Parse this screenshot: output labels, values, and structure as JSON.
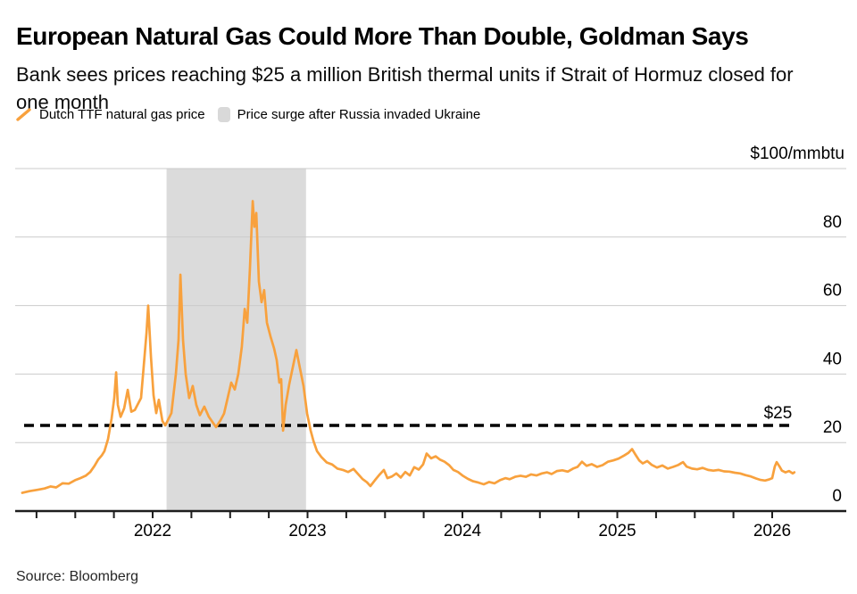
{
  "header": {
    "title": "European Natural Gas Could More Than Double, Goldman Says",
    "subtitle": "Bank sees prices reaching $25 a million British thermal units if Strait of Hormuz closed for one month"
  },
  "legend": {
    "items": [
      {
        "label": "Dutch TTF natural gas price",
        "swatch": "line",
        "color": "#f8a13d"
      },
      {
        "label": "Price surge after Russia invaded Ukraine",
        "swatch": "band",
        "color": "#d9d9d9"
      }
    ]
  },
  "footer": {
    "source_label": "Source: Bloomberg"
  },
  "chart_data": {
    "type": "line",
    "title": "European Natural Gas Could More Than Double, Goldman Says",
    "unit_label": "$100/mmbtu",
    "xlabel": "",
    "ylabel": "",
    "ylim": [
      0,
      100
    ],
    "yticks": [
      0,
      20,
      40,
      60,
      80
    ],
    "xticks_major": [
      2022,
      2023,
      2024,
      2025,
      2026
    ],
    "xticks_minor": {
      "start": 2021.25,
      "end": 2026.0,
      "step": 0.25
    },
    "grid": true,
    "legend_position": "top",
    "axis_label_side": "right",
    "reference_line": {
      "value": 25,
      "label": "$25",
      "style": "dashed",
      "color": "#000000",
      "x_start": 2021.17,
      "x_end": 2026.14
    },
    "shaded_region": {
      "label": "Price surge after Russia invaded Ukraine",
      "x0": 2022.09,
      "x1": 2022.99,
      "color": "#dbdbdb"
    },
    "series": [
      {
        "name": "Dutch TTF natural gas price",
        "color": "#f8a13d",
        "x": [
          2021.158,
          2021.204,
          2021.256,
          2021.302,
          2021.342,
          2021.377,
          2021.418,
          2021.458,
          2021.499,
          2021.533,
          2021.568,
          2021.597,
          2021.625,
          2021.648,
          2021.671,
          2021.689,
          2021.712,
          2021.735,
          2021.752,
          2021.764,
          2021.775,
          2021.793,
          2021.816,
          2021.839,
          2021.862,
          2021.885,
          2021.908,
          2021.925,
          2021.942,
          2021.96,
          2021.971,
          2021.989,
          2022.006,
          2022.023,
          2022.04,
          2022.063,
          2022.081,
          2022.098,
          2022.121,
          2022.15,
          2022.167,
          2022.179,
          2022.196,
          2022.213,
          2022.236,
          2022.259,
          2022.282,
          2022.305,
          2022.334,
          2022.363,
          2022.386,
          2022.409,
          2022.438,
          2022.461,
          2022.484,
          2022.507,
          2022.53,
          2022.553,
          2022.576,
          2022.594,
          2022.611,
          2022.628,
          2022.646,
          2022.657,
          2022.669,
          2022.686,
          2022.703,
          2022.72,
          2022.738,
          2022.761,
          2022.784,
          2022.801,
          2022.818,
          2022.83,
          2022.842,
          2022.859,
          2022.882,
          2022.905,
          2022.928,
          2022.945,
          2022.974,
          2022.997,
          2023.02,
          2023.038,
          2023.061,
          2023.089,
          2023.124,
          2023.159,
          2023.193,
          2023.228,
          2023.262,
          2023.297,
          2023.326,
          2023.354,
          2023.383,
          2023.406,
          2023.435,
          2023.464,
          2023.493,
          2023.516,
          2023.545,
          2023.573,
          2023.602,
          2023.631,
          2023.66,
          2023.689,
          2023.718,
          2023.746,
          2023.769,
          2023.798,
          2023.827,
          2023.856,
          2023.885,
          2023.914,
          2023.942,
          2023.971,
          2024.0,
          2024.035,
          2024.069,
          2024.104,
          2024.138,
          2024.173,
          2024.207,
          2024.242,
          2024.277,
          2024.305,
          2024.34,
          2024.375,
          2024.409,
          2024.444,
          2024.478,
          2024.513,
          2024.547,
          2024.576,
          2024.611,
          2024.645,
          2024.68,
          2024.714,
          2024.743,
          2024.772,
          2024.801,
          2024.835,
          2024.87,
          2024.905,
          2024.939,
          2024.974,
          2025.008,
          2025.043,
          2025.072,
          2025.095,
          2025.118,
          2025.141,
          2025.164,
          2025.193,
          2025.222,
          2025.256,
          2025.291,
          2025.326,
          2025.36,
          2025.395,
          2025.424,
          2025.447,
          2025.482,
          2025.516,
          2025.551,
          2025.586,
          2025.62,
          2025.655,
          2025.689,
          2025.724,
          2025.758,
          2025.793,
          2025.827,
          2025.862,
          2025.896,
          2025.925,
          2025.954,
          2025.977,
          2026.0,
          2026.017,
          2026.029,
          2026.046,
          2026.063,
          2026.086,
          2026.109,
          2026.132,
          2026.143
        ],
        "y": [
          5.3,
          5.8,
          6.2,
          6.6,
          7.2,
          6.9,
          8.1,
          8.0,
          9.0,
          9.6,
          10.3,
          11.4,
          13.2,
          15.0,
          16.2,
          17.5,
          21.0,
          27.0,
          33.0,
          40.5,
          31.0,
          27.5,
          30.0,
          35.4,
          29.0,
          29.5,
          31.5,
          33.0,
          42.0,
          52.0,
          60.0,
          45.0,
          33.8,
          28.6,
          32.5,
          26.3,
          25.0,
          26.5,
          28.6,
          40.0,
          50.0,
          69.0,
          50.0,
          40.0,
          33.0,
          36.5,
          31.0,
          28.0,
          30.5,
          27.5,
          26.0,
          24.5,
          26.5,
          28.5,
          33.0,
          37.5,
          35.5,
          40.0,
          48.0,
          59.0,
          55.0,
          71.0,
          90.5,
          83.0,
          87.0,
          67.0,
          61.0,
          64.5,
          55.0,
          51.0,
          47.5,
          44.0,
          37.5,
          38.5,
          23.5,
          31.0,
          37.0,
          42.0,
          47.0,
          43.0,
          36.5,
          28.5,
          23.5,
          20.5,
          17.5,
          15.8,
          14.2,
          13.6,
          12.4,
          12.0,
          11.4,
          12.3,
          10.8,
          9.4,
          8.4,
          7.3,
          9.0,
          10.6,
          12.0,
          9.6,
          10.1,
          11.0,
          9.8,
          11.4,
          10.4,
          12.8,
          12.1,
          13.6,
          16.8,
          15.4,
          16.0,
          15.0,
          14.4,
          13.4,
          12.0,
          11.4,
          10.4,
          9.4,
          8.7,
          8.3,
          7.8,
          8.5,
          8.1,
          9.0,
          9.6,
          9.3,
          10.0,
          10.3,
          10.0,
          10.7,
          10.4,
          11.0,
          11.3,
          10.8,
          11.7,
          11.9,
          11.5,
          12.4,
          12.9,
          14.4,
          13.2,
          13.7,
          12.9,
          13.4,
          14.4,
          14.8,
          15.3,
          16.2,
          17.0,
          18.1,
          16.4,
          14.8,
          13.9,
          14.6,
          13.5,
          12.7,
          13.3,
          12.4,
          12.9,
          13.5,
          14.3,
          13.0,
          12.4,
          12.2,
          12.6,
          12.0,
          11.8,
          12.0,
          11.6,
          11.5,
          11.2,
          11.0,
          10.5,
          10.1,
          9.5,
          9.1,
          8.9,
          9.2,
          9.6,
          13.0,
          14.3,
          13.1,
          11.8,
          11.3,
          11.7,
          11.0,
          11.3
        ]
      }
    ],
    "source": "Source: Bloomberg"
  }
}
